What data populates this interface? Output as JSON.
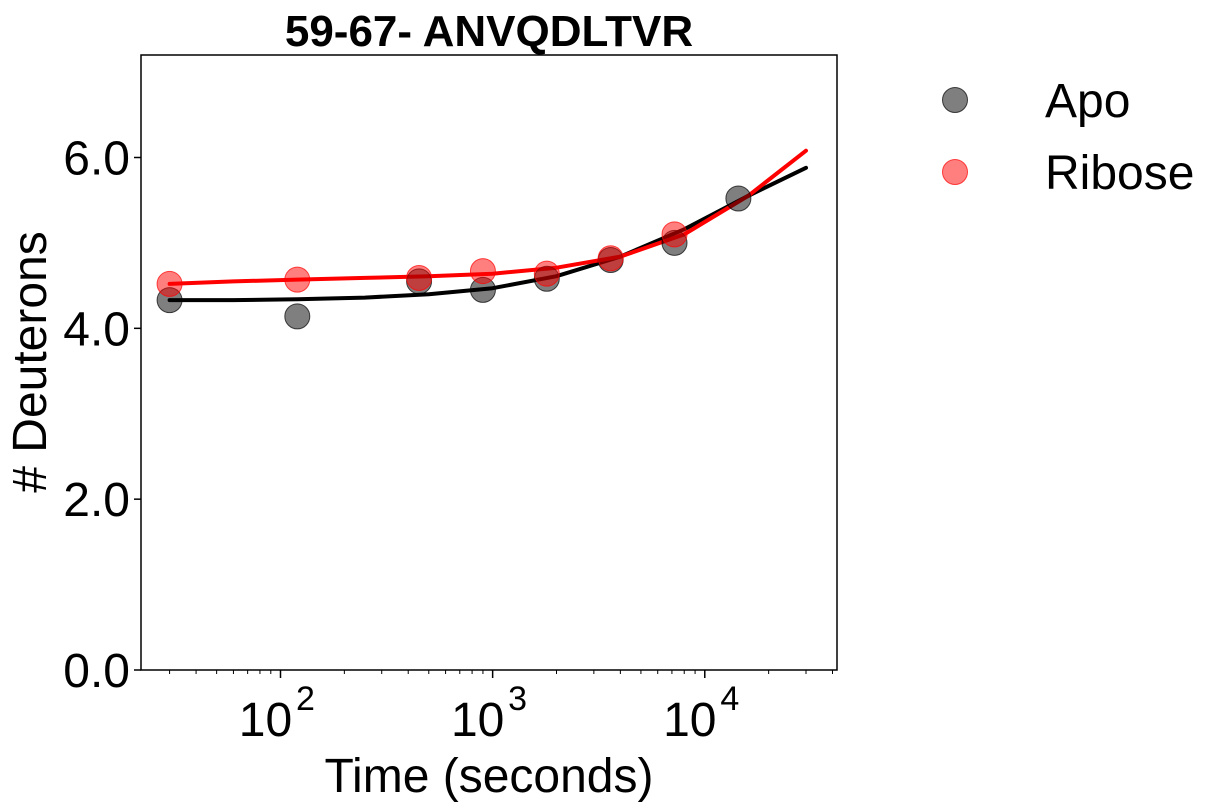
{
  "chart_data": {
    "type": "scatter",
    "title": "59-67- ANVQDLTVR",
    "xlabel": "Time (seconds)",
    "ylabel": "# Deuterons",
    "xscale": "log",
    "xlim": [
      22,
      42000
    ],
    "ylim": [
      0,
      7.2
    ],
    "yticks": [
      0.0,
      2.0,
      4.0,
      6.0
    ],
    "ytick_labels": [
      "0.0",
      "2.0",
      "4.0",
      "6.0"
    ],
    "xticks": [
      100,
      1000,
      10000
    ],
    "xtick_labels": [
      {
        "base": "10",
        "exp": "2"
      },
      {
        "base": "10",
        "exp": "3"
      },
      {
        "base": "10",
        "exp": "4"
      }
    ],
    "legend_position": "outside-right",
    "series": [
      {
        "name": "Apo",
        "color": "#000000",
        "marker_alpha": 0.5,
        "x": [
          30,
          120,
          450,
          900,
          1800,
          3600,
          7200,
          14400
        ],
        "y": [
          4.33,
          4.14,
          4.55,
          4.45,
          4.58,
          4.8,
          5.0,
          5.52
        ],
        "fit_x": [
          30,
          60,
          120,
          250,
          500,
          1000,
          2000,
          4000,
          8000,
          16000,
          30000
        ],
        "fit_y": [
          4.33,
          4.33,
          4.34,
          4.36,
          4.4,
          4.47,
          4.61,
          4.84,
          5.16,
          5.55,
          5.88
        ]
      },
      {
        "name": "Ribose",
        "color": "#ff0000",
        "marker_alpha": 0.5,
        "x": [
          30,
          120,
          450,
          900,
          1800,
          3600,
          7200
        ],
        "y": [
          4.52,
          4.57,
          4.59,
          4.67,
          4.64,
          4.82,
          5.1
        ],
        "fit_x": [
          30,
          60,
          120,
          250,
          500,
          1000,
          2000,
          4000,
          8000,
          16000,
          30000
        ],
        "fit_y": [
          4.52,
          4.55,
          4.57,
          4.59,
          4.61,
          4.64,
          4.71,
          4.84,
          5.1,
          5.55,
          6.08
        ]
      }
    ]
  }
}
